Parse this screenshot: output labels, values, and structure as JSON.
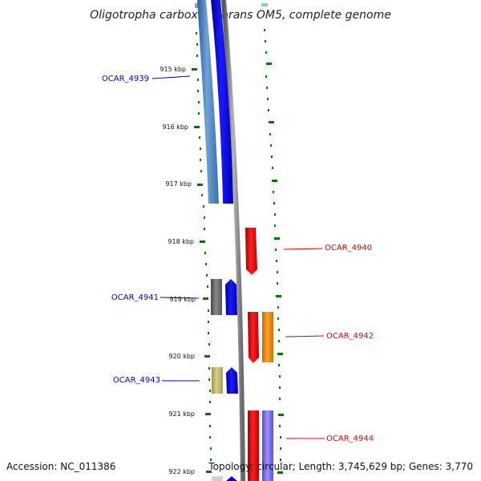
{
  "title": "Oligotropha carboxidovorans OM5, complete genome",
  "footer": {
    "accession": "Accession: NC_011386",
    "topology": "Topology: circular; Length: 3,745,629 bp; Genes: 3,770"
  },
  "ticks": [
    "915 kbp",
    "916 kbp",
    "917 kbp",
    "918 kbp",
    "919 kbp",
    "920 kbp",
    "921 kbp",
    "922 kbp"
  ],
  "genes": [
    {
      "label": "OCAR_4939",
      "color": "#0000cc"
    },
    {
      "label": "OCAR_4940",
      "color": "#dd0000"
    },
    {
      "label": "OCAR_4941",
      "color": "#0000cc"
    },
    {
      "label": "OCAR_4942",
      "color": "#dd0000"
    },
    {
      "label": "OCAR_4943",
      "color": "#0000cc"
    },
    {
      "label": "OCAR_4944",
      "color": "#dd0000"
    }
  ],
  "colors": {
    "forward_strand": "#ff0000",
    "reverse_strand": "#0000ff",
    "cog_blue": "#4f86c6",
    "cog_gray": "#666666",
    "cog_olive": "#bdb76b",
    "cog_orange": "#ff8c00",
    "cog_slate": "#7b68ee",
    "backbone": "#808080",
    "ticks_green": "#007700"
  }
}
